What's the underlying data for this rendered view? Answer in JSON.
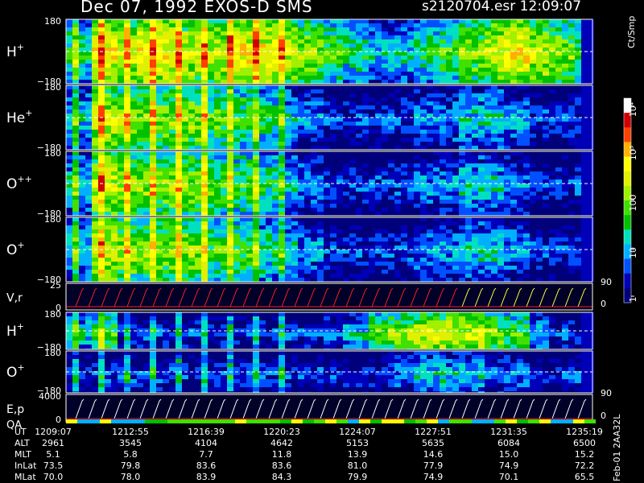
{
  "header": {
    "title": "Dec 07, 1992    EXOS-D SMS",
    "file_id": "s2120704.esr  12:09:07"
  },
  "colorbar": {
    "unit_label": "Ct/Smp",
    "ticks": [
      "1",
      "10",
      "100",
      "10³",
      "10⁴"
    ],
    "colors": [
      "#00007a",
      "#0000b8",
      "#0050ff",
      "#00b0ff",
      "#00e0c0",
      "#00c000",
      "#40e000",
      "#a0f000",
      "#e0f000",
      "#ffff00",
      "#ffb000",
      "#ff4000",
      "#d00000",
      "#ffffff"
    ]
  },
  "footer": "Feb-01 2AA32L",
  "chart_data": [
    {
      "type": "heatmap",
      "panel": "H+",
      "label": "H",
      "sup": "+",
      "yticks": [
        "180",
        "−180"
      ],
      "ylim": [
        -180,
        180
      ],
      "intensity_profile": [
        5,
        9,
        8,
        9,
        9,
        8,
        8,
        9,
        9,
        8,
        7,
        6,
        5,
        4,
        4,
        5,
        6,
        7,
        8,
        9,
        8,
        7,
        6
      ]
    },
    {
      "type": "heatmap",
      "panel": "He+",
      "label": "He",
      "sup": "+",
      "yticks": [
        "180",
        "−180"
      ],
      "ylim": [
        -180,
        180
      ],
      "intensity_profile": [
        4,
        8,
        7,
        7,
        7,
        7,
        6,
        6,
        5,
        4,
        3,
        2,
        2,
        2,
        2,
        3,
        3,
        4,
        4,
        3,
        2,
        2,
        2
      ]
    },
    {
      "type": "heatmap",
      "panel": "O++",
      "label": "O",
      "sup": "++",
      "yticks": [
        "180",
        "−180"
      ],
      "ylim": [
        -180,
        180
      ],
      "intensity_profile": [
        4,
        8,
        7,
        7,
        7,
        7,
        6,
        6,
        5,
        4,
        3,
        2,
        2,
        2,
        2,
        3,
        3,
        4,
        4,
        3,
        2,
        2,
        2
      ]
    },
    {
      "type": "heatmap",
      "panel": "O+",
      "label": "O",
      "sup": "+",
      "yticks": [
        "180",
        "−180"
      ],
      "ylim": [
        -180,
        180
      ],
      "intensity_profile": [
        4,
        8,
        7,
        7,
        7,
        7,
        6,
        6,
        5,
        4,
        3,
        2,
        2,
        2,
        2,
        3,
        3,
        4,
        4,
        3,
        2,
        2,
        2
      ]
    },
    {
      "type": "line",
      "panel": "V,r",
      "label": "V,r",
      "yticks": [
        "25",
        "0"
      ],
      "right_ticks": [
        "90",
        "0"
      ]
    },
    {
      "type": "heatmap",
      "panel": "H+ (2)",
      "label": "H",
      "sup": "+",
      "yticks": [
        "180",
        "−180"
      ],
      "ylim": [
        -180,
        180
      ],
      "intensity_profile": [
        4,
        6,
        2,
        2,
        2,
        2,
        2,
        2,
        2,
        2,
        2,
        3,
        4,
        6,
        7,
        8,
        8,
        8,
        7,
        6,
        4,
        2,
        2
      ]
    },
    {
      "type": "heatmap",
      "panel": "O+ (2)",
      "label": "O",
      "sup": "+",
      "yticks": [
        "180",
        "−180"
      ],
      "ylim": [
        -180,
        180
      ],
      "intensity_profile": [
        2,
        2,
        2,
        2,
        2,
        2,
        2,
        2,
        2,
        2,
        2,
        2,
        2,
        2,
        3,
        4,
        4,
        4,
        3,
        3,
        2,
        2,
        2
      ]
    },
    {
      "type": "line",
      "panel": "E,p / QA",
      "label": "E,p",
      "label2": "QA",
      "yticks": [
        "4000",
        "0"
      ],
      "right_ticks": [
        "90",
        "0"
      ]
    }
  ],
  "table": {
    "rows": [
      {
        "label": "UT",
        "values": [
          "1209:07",
          "1212:55",
          "1216:39",
          "1220:23",
          "1224:07",
          "1227:51",
          "1231:35",
          "1235:19"
        ]
      },
      {
        "label": "ALT",
        "values": [
          "2961",
          "3545",
          "4104",
          "4642",
          "5153",
          "5635",
          "6084",
          "6500"
        ]
      },
      {
        "label": "MLT",
        "values": [
          "5.1",
          "5.8",
          "7.7",
          "11.8",
          "13.9",
          "14.6",
          "15.0",
          "15.2"
        ]
      },
      {
        "label": "InLat",
        "values": [
          "73.5",
          "79.8",
          "83.6",
          "83.6",
          "81.0",
          "77.9",
          "74.9",
          "72.2"
        ]
      },
      {
        "label": "MLat",
        "values": [
          "70.0",
          "78.0",
          "83.9",
          "84.3",
          "79.9",
          "74.9",
          "70.1",
          "65.5"
        ]
      }
    ]
  }
}
